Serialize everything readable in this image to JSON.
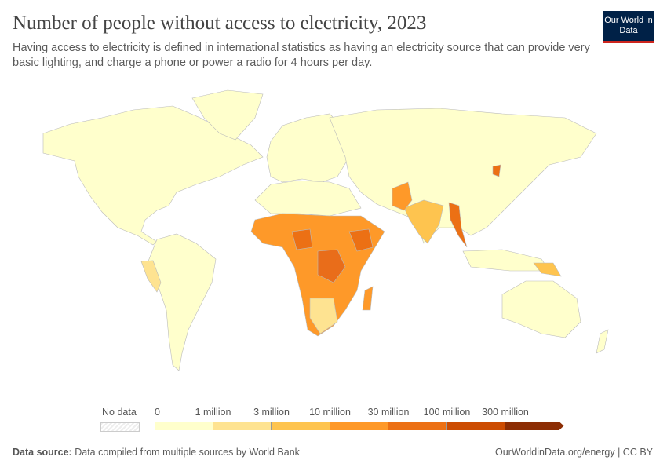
{
  "header": {
    "title": "Number of people without access to electricity, 2023",
    "subtitle": "Having access to electricity is defined in international statistics as having an electricity source that can provide very basic lighting, and charge a phone or power a radio for 4 hours per day.",
    "logo_text": "Our World in Data"
  },
  "legend": {
    "no_data_label": "No data",
    "bins": [
      "0",
      "1 million",
      "3 million",
      "10 million",
      "30 million",
      "100 million",
      "300 million"
    ],
    "colors": [
      "#ffffcc",
      "#fee391",
      "#fec44f",
      "#fe9929",
      "#ec7014",
      "#cc4c02",
      "#8c2d04"
    ],
    "no_data_color": "#eeeeee"
  },
  "footer": {
    "source_label": "Data source:",
    "source_text": "Data compiled from multiple sources by World Bank",
    "url": "OurWorldinData.org/energy | CC BY"
  }
}
